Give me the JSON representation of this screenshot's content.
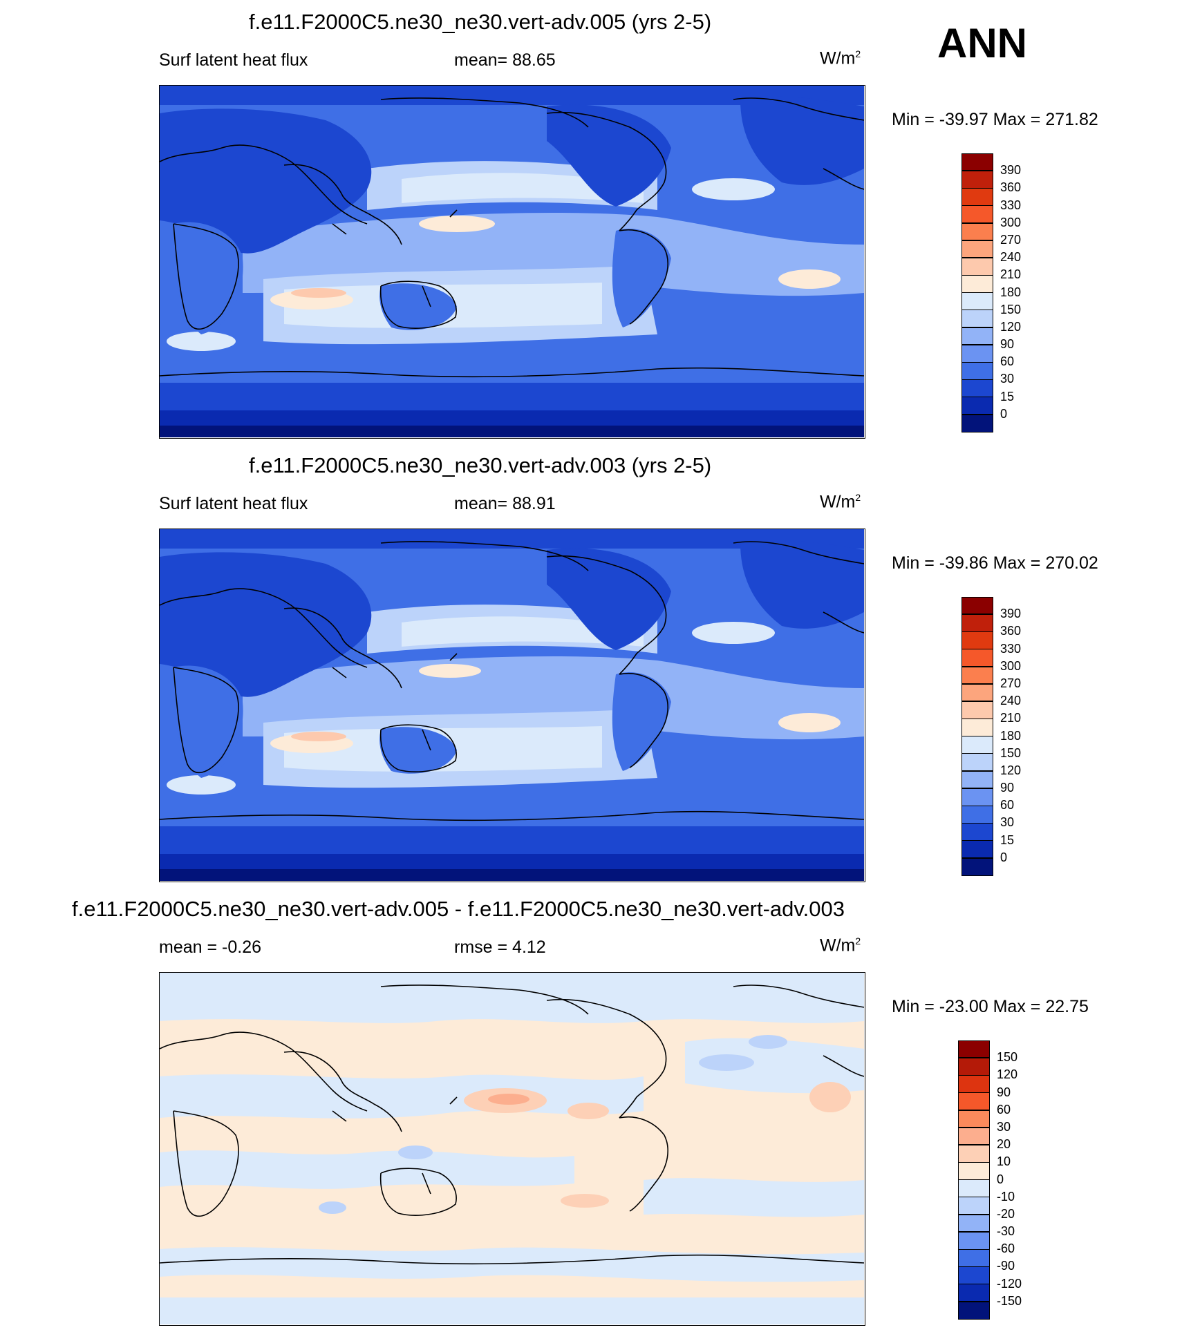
{
  "season": "ANN",
  "units_base": "W/m",
  "units_exp": "2",
  "panels": [
    {
      "title": "f.e11.F2000C5.ne30_ne30.vert-adv.005 (yrs 2-5)",
      "left_label": "Surf latent heat flux",
      "center_label": "mean=  88.65",
      "minmax": "Min = -39.97 Max = 271.82",
      "levels": [
        "390",
        "360",
        "330",
        "300",
        "270",
        "240",
        "210",
        "180",
        "150",
        "120",
        "90",
        "60",
        "30",
        "15",
        "0"
      ],
      "colors": [
        "#8b0000",
        "#c0200b",
        "#e03a10",
        "#f5582a",
        "#fb7f4e",
        "#fca57d",
        "#fdc9ad",
        "#fdebd8",
        "#dbeafb",
        "#bcd3fa",
        "#92b3f7",
        "#6b93f2",
        "#3f6fe6",
        "#1c47d0",
        "#0a2ab0",
        "#02137a"
      ]
    },
    {
      "title": "f.e11.F2000C5.ne30_ne30.vert-adv.003 (yrs 2-5)",
      "left_label": "Surf latent heat flux",
      "center_label": "mean=  88.91",
      "minmax": "Min = -39.86 Max = 270.02",
      "levels": [
        "390",
        "360",
        "330",
        "300",
        "270",
        "240",
        "210",
        "180",
        "150",
        "120",
        "90",
        "60",
        "30",
        "15",
        "0"
      ],
      "colors": [
        "#8b0000",
        "#c0200b",
        "#e03a10",
        "#f5582a",
        "#fb7f4e",
        "#fca57d",
        "#fdc9ad",
        "#fdebd8",
        "#dbeafb",
        "#bcd3fa",
        "#92b3f7",
        "#6b93f2",
        "#3f6fe6",
        "#1c47d0",
        "#0a2ab0",
        "#02137a"
      ]
    },
    {
      "title": "f.e11.F2000C5.ne30_ne30.vert-adv.005 - f.e11.F2000C5.ne30_ne30.vert-adv.003",
      "left_label": "mean =  -0.26",
      "center_label": "rmse =   4.12",
      "minmax": "Min = -23.00 Max =  22.75",
      "levels": [
        "150",
        "120",
        "90",
        "60",
        "30",
        "20",
        "10",
        "0",
        "-10",
        "-20",
        "-30",
        "-60",
        "-90",
        "-120",
        "-150"
      ],
      "colors": [
        "#8b0000",
        "#b41a08",
        "#dd3410",
        "#f5582a",
        "#fb8a5c",
        "#fcae8e",
        "#fdd0b6",
        "#fdebd8",
        "#dbeafb",
        "#bcd3fa",
        "#92b3f7",
        "#6b93f2",
        "#3f6fe6",
        "#1c47d0",
        "#0a2ab0",
        "#02137a"
      ]
    }
  ]
}
